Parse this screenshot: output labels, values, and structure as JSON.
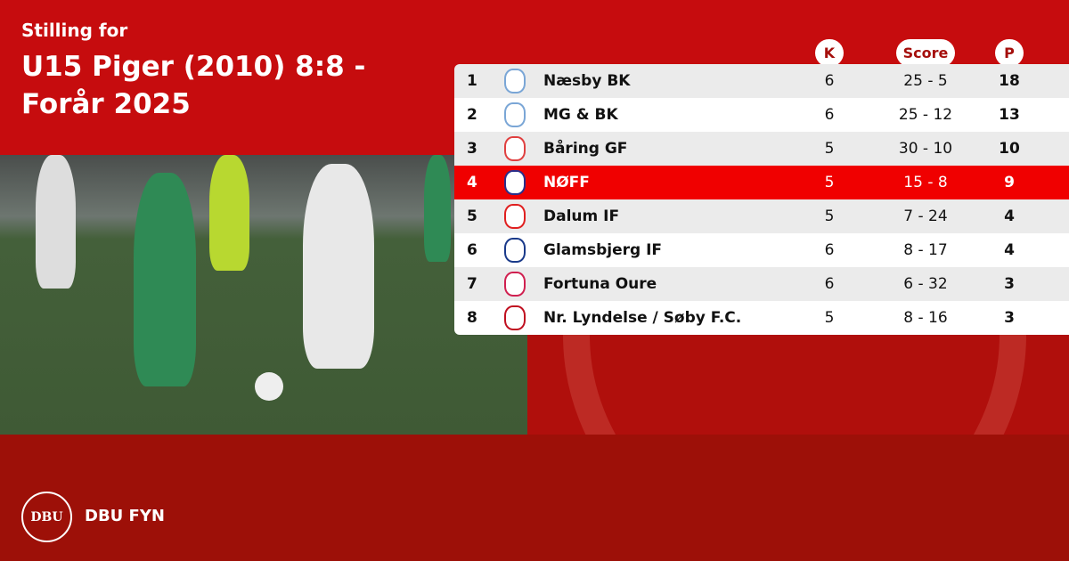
{
  "header": {
    "subtitle": "Stilling for",
    "title": "U15 Piger (2010) 8:8 - Forår 2025"
  },
  "columns": {
    "k": "K",
    "score": "Score",
    "p": "P"
  },
  "rows": [
    {
      "rank": "1",
      "team": "Næsby BK",
      "k": "6",
      "score": "25 - 5",
      "p": "18",
      "logo_color": "#7aa6d6"
    },
    {
      "rank": "2",
      "team": "MG & BK",
      "k": "6",
      "score": "25 - 12",
      "p": "13",
      "logo_color": "#7aa6d6"
    },
    {
      "rank": "3",
      "team": "Båring GF",
      "k": "5",
      "score": "30 - 10",
      "p": "10",
      "logo_color": "#e04040"
    },
    {
      "rank": "4",
      "team": "NØFF",
      "k": "5",
      "score": "15 - 8",
      "p": "9",
      "logo_color": "#2a2f8a",
      "highlight": true
    },
    {
      "rank": "5",
      "team": "Dalum IF",
      "k": "5",
      "score": "7 - 24",
      "p": "4",
      "logo_color": "#e02020"
    },
    {
      "rank": "6",
      "team": "Glamsbjerg IF",
      "k": "6",
      "score": "8 - 17",
      "p": "4",
      "logo_color": "#1a3a8a"
    },
    {
      "rank": "7",
      "team": "Fortuna Oure",
      "k": "6",
      "score": "6 - 32",
      "p": "3",
      "logo_color": "#d02050"
    },
    {
      "rank": "8",
      "team": "Nr. Lyndelse / Søby F.C.",
      "k": "5",
      "score": "8 - 16",
      "p": "3",
      "logo_color": "#c01020"
    }
  ],
  "footer": {
    "brand": "DBU FYN",
    "seal_text": "DBU"
  },
  "colors": {
    "primary": "#c60c0e",
    "footer": "#9d1008",
    "highlight": "#f00000"
  }
}
